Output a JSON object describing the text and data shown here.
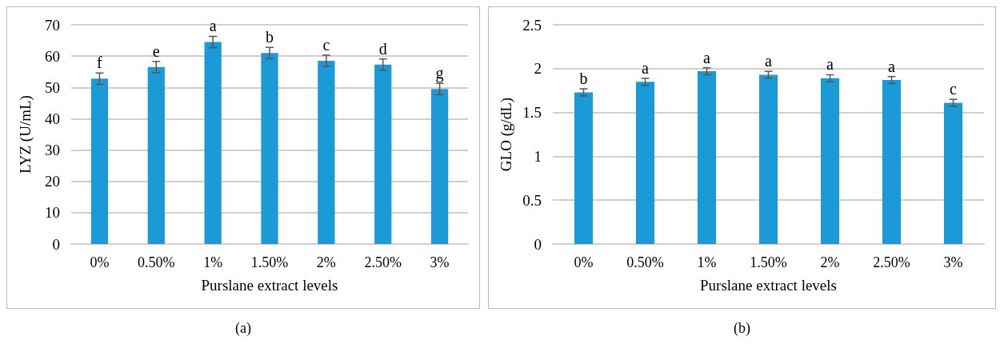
{
  "chart_data": [
    {
      "type": "bar",
      "xlabel": "Purslane extract levels",
      "ylabel": "LYZ (U/mL)",
      "categories": [
        "0%",
        "0.50%",
        "1%",
        "1.50%",
        "2%",
        "2.50%",
        "3%"
      ],
      "values": [
        52.8,
        56.5,
        64.5,
        61,
        58.5,
        57.3,
        49.5
      ],
      "errors": [
        1.8,
        1.8,
        1.8,
        1.8,
        1.8,
        1.8,
        1.8
      ],
      "color": "#1a9ad6",
      "ylim": [
        0,
        70
      ],
      "yticks": [
        0,
        10,
        20,
        30,
        40,
        50,
        60,
        70
      ],
      "grid": "y",
      "annotations": [
        {
          "text": "f",
          "x": "0%",
          "y": 54.6
        },
        {
          "text": "e",
          "x": "0.50%",
          "y": 58.3
        },
        {
          "text": "a",
          "x": "1%",
          "y": 66.3
        },
        {
          "text": "b",
          "x": "1.50%",
          "y": 62.8
        },
        {
          "text": "c",
          "x": "2%",
          "y": 60.3
        },
        {
          "text": "d",
          "x": "2.50%",
          "y": 59.1
        },
        {
          "text": "g",
          "x": "3%",
          "y": 51.3
        },
        "(a)"
      ]
    },
    {
      "type": "bar",
      "xlabel": "Purslane extract levels",
      "ylabel": "GLO (g/dL)",
      "categories": [
        "0%",
        "0.50%",
        "1%",
        "1.50%",
        "2%",
        "2.50%",
        "3%"
      ],
      "values": [
        1.73,
        1.85,
        1.97,
        1.93,
        1.89,
        1.87,
        1.61
      ],
      "errors": [
        0.04,
        0.04,
        0.04,
        0.04,
        0.04,
        0.04,
        0.04
      ],
      "color": "#1a9ad6",
      "ylim": [
        0,
        2.5
      ],
      "yticks": [
        0,
        0.5,
        1,
        1.5,
        2,
        2.5
      ],
      "grid": "y",
      "annotations": [
        {
          "text": "b",
          "x": "0%",
          "y": 1.77
        },
        {
          "text": "a",
          "x": "0.50%",
          "y": 1.89
        },
        {
          "text": "a",
          "x": "1%",
          "y": 2.01
        },
        {
          "text": "a",
          "x": "1.50%",
          "y": 1.97
        },
        {
          "text": "a",
          "x": "2%",
          "y": 1.93
        },
        {
          "text": "a",
          "x": "2.50%",
          "y": 1.91
        },
        {
          "text": "c",
          "x": "3%",
          "y": 1.65
        },
        "(b)"
      ]
    }
  ]
}
